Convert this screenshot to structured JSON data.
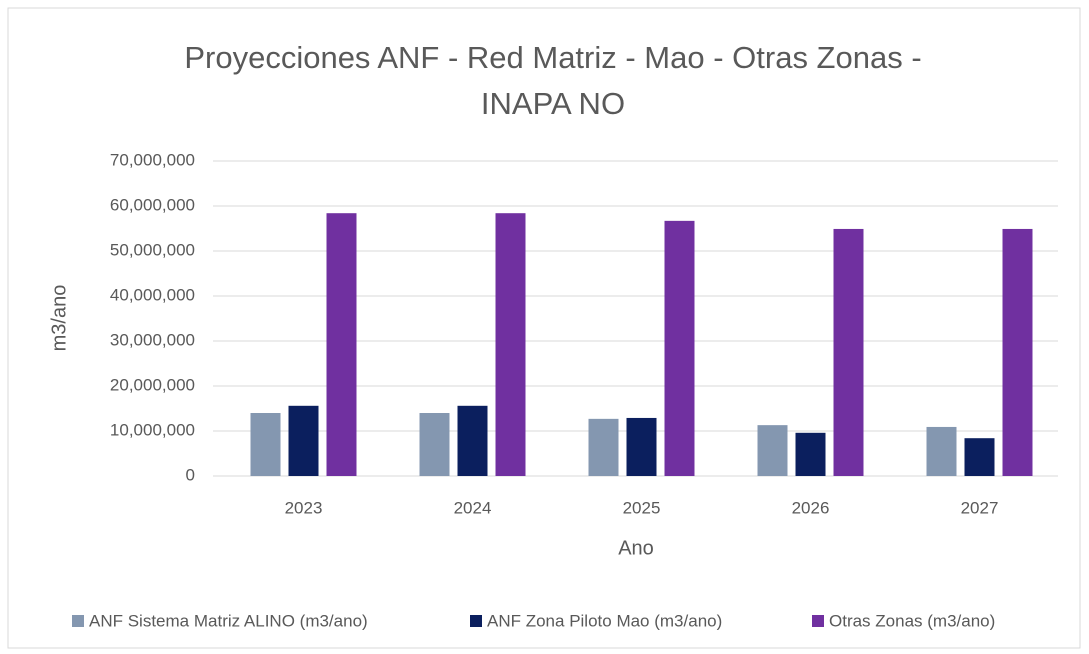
{
  "chart_data": {
    "type": "bar",
    "title": [
      "Proyecciones ANF - Red Matriz - Mao - Otras Zonas -",
      "INAPA NO"
    ],
    "x_label": "Ano",
    "y_label": "m3/ano",
    "categories": [
      "2023",
      "2024",
      "2025",
      "2026",
      "2027"
    ],
    "series": [
      {
        "name": "ANF Sistema Matriz ALINO (m3/ano)",
        "color": "#8497b0",
        "values": [
          14000000,
          14000000,
          12700000,
          11300000,
          10900000
        ]
      },
      {
        "name": "ANF Zona Piloto Mao (m3/ano)",
        "color": "#0b1f5e",
        "values": [
          15600000,
          15600000,
          12900000,
          9600000,
          8400000
        ]
      },
      {
        "name": "Otras Zonas (m3/ano)",
        "color": "#7030a0",
        "values": [
          58400000,
          58400000,
          56700000,
          54900000,
          54900000
        ]
      }
    ],
    "ylim": [
      0,
      70000000
    ],
    "yticks": [
      0,
      {
        "value": 10000000,
        "label": "10,000,000"
      },
      {
        "value": 20000000,
        "label": "20,000,000"
      },
      {
        "value": 30000000,
        "label": "30,000,000"
      },
      {
        "value": 40000000,
        "label": "40,000,000"
      },
      {
        "value": 50000000,
        "label": "50,000,000"
      },
      {
        "value": 60000000,
        "label": "60,000,000"
      },
      {
        "value": 70000000,
        "label": "70,000,000"
      }
    ],
    "grid": true,
    "legend": "bottom"
  }
}
